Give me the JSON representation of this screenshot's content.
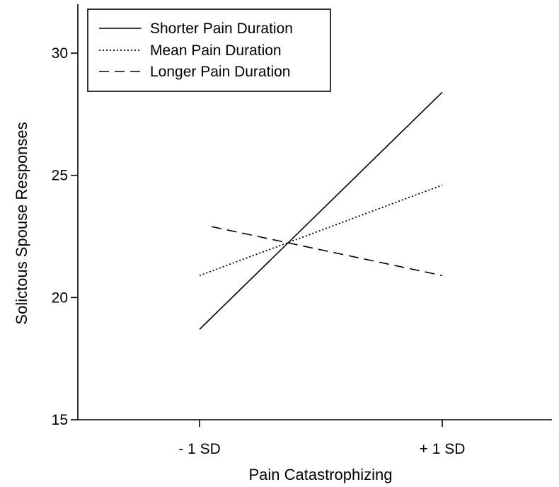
{
  "chart_data": {
    "type": "line",
    "title": "",
    "xlabel": "Pain Catastrophizing",
    "ylabel": "Solictous Spouse Responses",
    "categories": [
      "- 1 SD",
      "+ 1 SD"
    ],
    "ylim": [
      15,
      32
    ],
    "yticks": [
      15,
      20,
      25,
      30
    ],
    "grid": false,
    "legend_position": "top-left",
    "series": [
      {
        "name": "Shorter Pain Duration",
        "line_style": "solid",
        "color": "#000000",
        "x_positions": [
          -1,
          1
        ],
        "values": [
          18.7,
          28.4
        ]
      },
      {
        "name": "Mean Pain Duration",
        "line_style": "dotted",
        "color": "#000000",
        "x_positions": [
          -1,
          1
        ],
        "values": [
          20.9,
          24.6
        ]
      },
      {
        "name": "Longer Pain Duration",
        "line_style": "dashed",
        "color": "#000000",
        "x_positions": [
          -0.9,
          1
        ],
        "values": [
          22.9,
          20.9
        ]
      }
    ]
  }
}
